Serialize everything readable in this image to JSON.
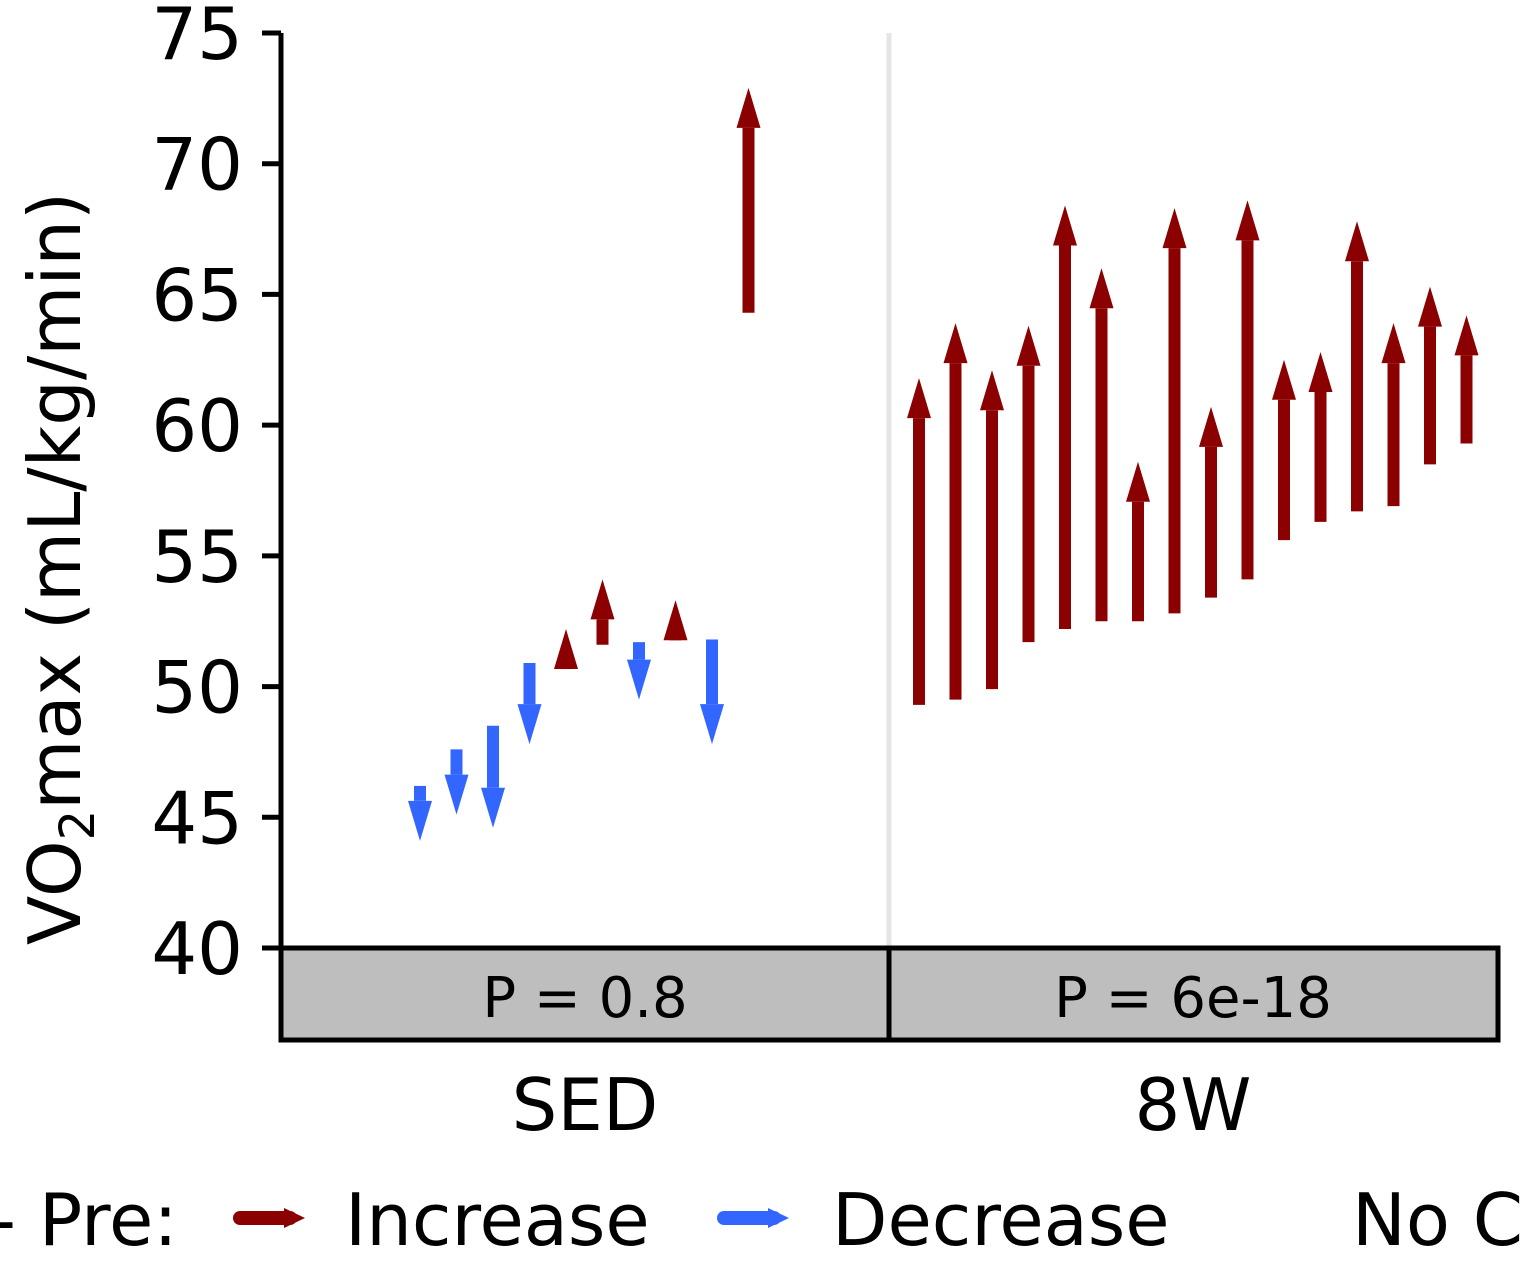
{
  "chart_data": {
    "type": "arrow",
    "ylabel_main": "VO",
    "ylabel_sub": "2",
    "ylabel_rest": "max (mL/kg/min)",
    "ylim": [
      40,
      75
    ],
    "yticks": [
      "40",
      "45",
      "50",
      "55",
      "60",
      "65",
      "70",
      "75"
    ],
    "panels": [
      {
        "name": "SED",
        "p_label": "P = 0.8",
        "arrows": [
          {
            "pre": 46.2,
            "post": 44.1
          },
          {
            "pre": 47.6,
            "post": 45.1
          },
          {
            "pre": 48.5,
            "post": 44.6
          },
          {
            "pre": 50.9,
            "post": 47.8
          },
          {
            "pre": 51.0,
            "post": 52.2
          },
          {
            "pre": 51.6,
            "post": 54.1
          },
          {
            "pre": 51.7,
            "post": 49.5
          },
          {
            "pre": 51.9,
            "post": 53.3
          },
          {
            "pre": 51.8,
            "post": 47.8
          },
          {
            "pre": 64.3,
            "post": 72.9
          }
        ]
      },
      {
        "name": "8W",
        "p_label": "P = 6e-18",
        "arrows": [
          {
            "pre": 49.3,
            "post": 61.8
          },
          {
            "pre": 49.5,
            "post": 63.9
          },
          {
            "pre": 49.9,
            "post": 62.1
          },
          {
            "pre": 51.7,
            "post": 63.8
          },
          {
            "pre": 52.2,
            "post": 68.4
          },
          {
            "pre": 52.5,
            "post": 66.0
          },
          {
            "pre": 52.5,
            "post": 58.6
          },
          {
            "pre": 52.8,
            "post": 68.3
          },
          {
            "pre": 53.4,
            "post": 60.7
          },
          {
            "pre": 54.1,
            "post": 68.6
          },
          {
            "pre": 55.6,
            "post": 62.5
          },
          {
            "pre": 56.3,
            "post": 62.8
          },
          {
            "pre": 56.7,
            "post": 67.8
          },
          {
            "pre": 56.9,
            "post": 63.9
          },
          {
            "pre": 58.5,
            "post": 65.3
          },
          {
            "pre": 59.3,
            "post": 64.2
          }
        ]
      }
    ],
    "legend": {
      "title": "- Pre:",
      "items": [
        {
          "label": "Increase",
          "color": "#8B0000"
        },
        {
          "label": "Decrease",
          "color": "#3366FF"
        },
        {
          "label": "No C",
          "color": "#ffffff"
        }
      ],
      "placement": "bottom"
    },
    "colors": {
      "increase": "#8B0000",
      "decrease": "#3366FF",
      "strip": "#BEBEBE",
      "divider": "#E5E5E5"
    }
  }
}
